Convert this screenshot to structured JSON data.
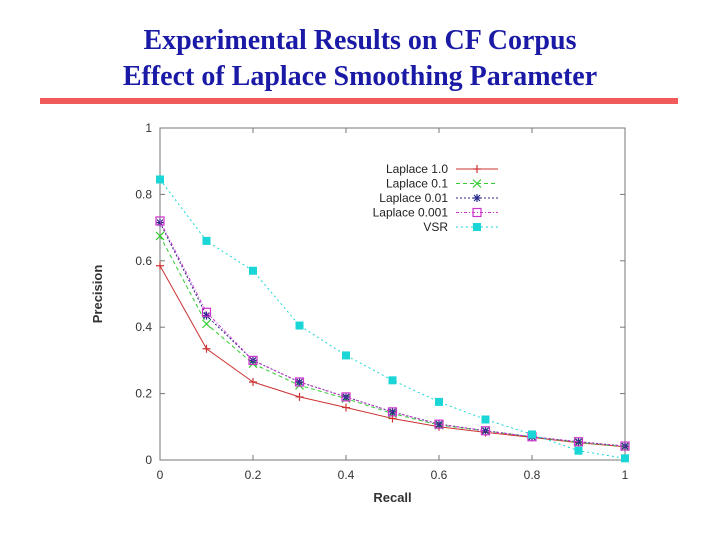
{
  "slide": {
    "title_line1": "Experimental Results on CF Corpus",
    "title_line2": "Effect of Laplace Smoothing Parameter",
    "rule_color": "#f05a5a",
    "title_color": "#1a1aa6"
  },
  "chart_data": {
    "type": "line",
    "title": "",
    "xlabel": "Recall",
    "ylabel": "Precision",
    "xlim": [
      0,
      1
    ],
    "ylim": [
      0,
      1
    ],
    "x_ticks": [
      "0",
      "0.2",
      "0.4",
      "0.6",
      "0.8",
      "1"
    ],
    "y_ticks": [
      "0",
      "0.2",
      "0.4",
      "0.6",
      "0.8",
      "1"
    ],
    "grid": false,
    "legend_position": "top-right",
    "x": [
      0,
      0.1,
      0.2,
      0.3,
      0.4,
      0.5,
      0.6,
      0.7,
      0.8,
      0.9,
      1.0
    ],
    "series": [
      {
        "name": "Laplace 1.0",
        "marker": "plus",
        "color": "#cc3333",
        "values": [
          0.585,
          0.335,
          0.235,
          0.19,
          0.158,
          0.125,
          0.1,
          0.083,
          0.068,
          0.052,
          0.04
        ]
      },
      {
        "name": "Laplace 0.1",
        "marker": "x",
        "color": "#33cc33",
        "values": [
          0.675,
          0.41,
          0.29,
          0.225,
          0.185,
          0.14,
          0.105,
          0.088,
          0.07,
          0.053,
          0.04
        ]
      },
      {
        "name": "Laplace 0.01",
        "marker": "star",
        "color": "#2a2a8c",
        "values": [
          0.715,
          0.435,
          0.3,
          0.235,
          0.19,
          0.145,
          0.108,
          0.088,
          0.07,
          0.055,
          0.042
        ]
      },
      {
        "name": "Laplace 0.001",
        "marker": "square",
        "color": "#cc33cc",
        "values": [
          0.72,
          0.445,
          0.3,
          0.235,
          0.19,
          0.145,
          0.108,
          0.088,
          0.07,
          0.055,
          0.042
        ]
      },
      {
        "name": "VSR",
        "marker": "filled-square",
        "color": "#1ad6d6",
        "values": [
          0.845,
          0.66,
          0.57,
          0.405,
          0.315,
          0.24,
          0.175,
          0.122,
          0.077,
          0.028,
          0.005
        ]
      }
    ]
  }
}
